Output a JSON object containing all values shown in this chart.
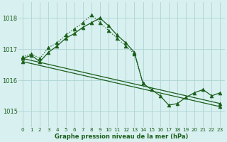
{
  "background_color": "#d8f0f0",
  "grid_color": "#aed4d4",
  "line_color": "#1a5e1a",
  "title": "Graphe pression niveau de la mer (hPa)",
  "xlim": [
    -0.5,
    23.5
  ],
  "ylim": [
    1014.5,
    1018.5
  ],
  "yticks": [
    1015,
    1016,
    1017,
    1018
  ],
  "xticks": [
    0,
    1,
    2,
    3,
    4,
    5,
    6,
    7,
    8,
    9,
    10,
    11,
    12,
    13,
    14,
    15,
    16,
    17,
    18,
    19,
    20,
    21,
    22,
    23
  ],
  "series": [
    {
      "x": [
        0,
        1,
        2,
        3,
        4,
        5,
        6,
        7,
        8,
        9,
        10,
        11,
        12,
        13,
        14
      ],
      "y": [
        1016.75,
        1016.85,
        1016.7,
        1017.05,
        1017.2,
        1017.45,
        1017.65,
        1017.85,
        1018.1,
        1017.85,
        1017.6,
        1017.35,
        1017.1,
        1016.85,
        1015.9
      ],
      "style": "dotted",
      "marker": "^",
      "markersize": 3.5
    },
    {
      "x": [
        0,
        1,
        2,
        3,
        4,
        5,
        6,
        7,
        8,
        9,
        10,
        11,
        12,
        13,
        14,
        15,
        16,
        17,
        18,
        19,
        20,
        21,
        22,
        23
      ],
      "y": [
        1016.7,
        1016.8,
        1016.6,
        1016.9,
        1017.1,
        1017.35,
        1017.5,
        1017.7,
        1017.85,
        1018.0,
        1017.75,
        1017.45,
        1017.2,
        1016.9,
        1015.9,
        1015.7,
        1015.5,
        1015.2,
        1015.25,
        1015.45,
        1015.6,
        1015.7,
        1015.5,
        1015.6
      ],
      "style": "solid",
      "marker": "^",
      "markersize": 3.5
    },
    {
      "x": [
        0,
        23
      ],
      "y": [
        1016.7,
        1015.25
      ],
      "style": "solid",
      "marker": "^",
      "markersize": 3.5
    },
    {
      "x": [
        0,
        23
      ],
      "y": [
        1016.6,
        1015.15
      ],
      "style": "solid",
      "marker": "^",
      "markersize": 3.5
    }
  ]
}
